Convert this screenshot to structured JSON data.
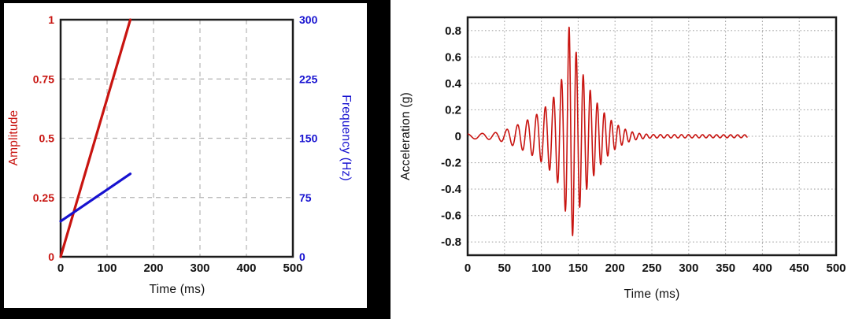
{
  "page": {
    "background": "#000000",
    "panel_background": "#ffffff"
  },
  "colors": {
    "amplitude_red": "#c81410",
    "frequency_blue": "#1712d0",
    "waveform_red": "#c81410",
    "axis_frame": "#1c1c1c",
    "tick_text": "#111111",
    "grid_dashed": "#b3b3b3",
    "grid_dotted": "#a6a6a6"
  },
  "chart_data": [
    {
      "id": "sweep",
      "type": "line",
      "title": "",
      "xlabel": "Time (ms)",
      "xlim": [
        0,
        500
      ],
      "xticks": [
        0,
        100,
        200,
        300,
        400,
        500
      ],
      "xtick_labels": [
        "0",
        "100",
        "200",
        "300",
        "400",
        "500"
      ],
      "grid": "dashed",
      "legend": "none",
      "left_axis": {
        "label": "Amplitude",
        "color": "#c81410",
        "lim": [
          0,
          1
        ],
        "ticks": [
          0,
          0.25,
          0.5,
          0.75,
          1
        ],
        "tick_labels": [
          "0",
          "0.25",
          "0.5",
          "0.75",
          "1"
        ]
      },
      "right_axis": {
        "label": "Frequency (Hz)",
        "color": "#1712d0",
        "lim": [
          0,
          300
        ],
        "ticks": [
          0,
          75,
          150,
          225,
          300
        ],
        "tick_labels": [
          "0",
          "75",
          "150",
          "225",
          "300"
        ]
      },
      "series": [
        {
          "name": "amplitude-ramp",
          "axis": "left",
          "color": "#c81410",
          "width": 3.2,
          "points": [
            [
              0,
              0
            ],
            [
              150,
              1
            ]
          ]
        },
        {
          "name": "frequency-ramp",
          "axis": "right",
          "color": "#1712d0",
          "width": 3.2,
          "points": [
            [
              0,
              45
            ],
            [
              150,
              105
            ]
          ]
        }
      ]
    },
    {
      "id": "waveform",
      "type": "line",
      "title": "",
      "xlabel": "Time (ms)",
      "ylabel": "Acceleration (g)",
      "xlim": [
        0,
        500
      ],
      "ylim": [
        -0.9,
        0.9
      ],
      "xticks": [
        0,
        50,
        100,
        150,
        200,
        250,
        300,
        350,
        400,
        450,
        500
      ],
      "xtick_labels": [
        "0",
        "50",
        "100",
        "150",
        "200",
        "250",
        "300",
        "350",
        "400",
        "450",
        "500"
      ],
      "yticks": [
        -0.8,
        -0.6,
        -0.4,
        -0.2,
        0,
        0.2,
        0.4,
        0.6,
        0.8
      ],
      "ytick_labels": [
        "-0.8",
        "-0.6",
        "-0.4",
        "-0.2",
        "0",
        "0.2",
        "0.4",
        "0.6",
        "0.8"
      ],
      "grid": "dotted",
      "legend": "none",
      "series": [
        {
          "name": "acceleration-trace",
          "color": "#c81410",
          "width": 1.6,
          "signal": {
            "kind": "swept-sine burst (chirp)",
            "time_span_ms": [
              0,
              380
            ],
            "carrier_hz": {
              "start": 45,
              "end": 105,
              "sweep_window_ms": [
                0,
                150
              ]
            },
            "phase_offset_cycles": 0.28,
            "envelope_g": [
              [
                0,
                0.018
              ],
              [
                35,
                0.025
              ],
              [
                50,
                0.045
              ],
              [
                65,
                0.08
              ],
              [
                80,
                0.12
              ],
              [
                95,
                0.17
              ],
              [
                105,
                0.22
              ],
              [
                115,
                0.28
              ],
              [
                122,
                0.35
              ],
              [
                128,
                0.44
              ],
              [
                133,
                0.58
              ],
              [
                138,
                0.85
              ],
              [
                143,
                0.74
              ],
              [
                148,
                0.62
              ],
              [
                153,
                0.52
              ],
              [
                160,
                0.42
              ],
              [
                168,
                0.33
              ],
              [
                176,
                0.25
              ],
              [
                185,
                0.18
              ],
              [
                195,
                0.12
              ],
              [
                205,
                0.08
              ],
              [
                215,
                0.05
              ],
              [
                225,
                0.03
              ],
              [
                235,
                0.02
              ],
              [
                250,
                0.013
              ],
              [
                380,
                0.011
              ]
            ],
            "peak_g": 0.82,
            "peak_time_ms": 138,
            "trough_g": -0.75,
            "trough_time_ms": 143
          }
        }
      ]
    }
  ]
}
